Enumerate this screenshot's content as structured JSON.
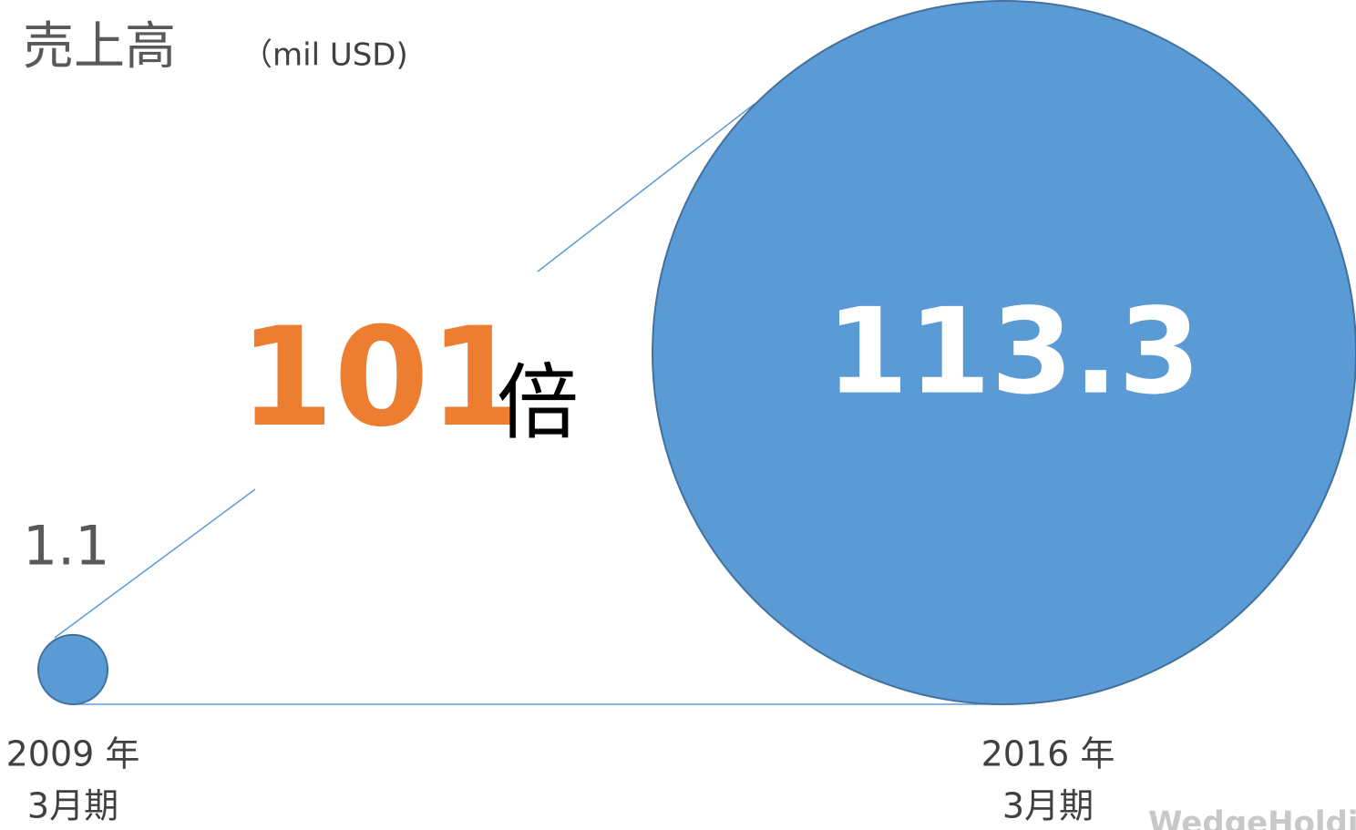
{
  "chart_data": {
    "type": "bubble",
    "title": "売上高",
    "unit": "（mil USD)",
    "categories": [
      [
        "2009 年",
        "3月期"
      ],
      [
        "2016 年",
        "3月期"
      ]
    ],
    "values": [
      1.1,
      113.3
    ],
    "color": "#5b9bd5",
    "multiplier": {
      "value": 101,
      "unit": "倍"
    },
    "watermark": "WedgeHoldings"
  }
}
